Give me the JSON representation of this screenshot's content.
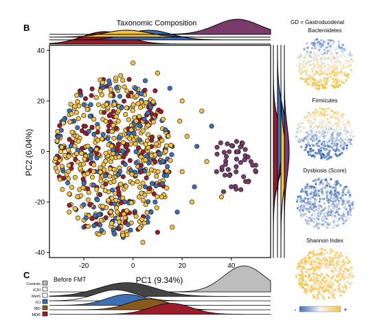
{
  "panel_label_b": "B",
  "panel_label_c": "C",
  "title": "Taxonomic Composition",
  "note": "GD = Gastroduodenal",
  "colorbar_low": "-",
  "colorbar_high": "+",
  "colors": {
    "yellow": "#f5c242",
    "blue": "#3d6fb6",
    "red": "#9b1c2a",
    "purple": "#7a3b6b",
    "grey": "#bdbdbd",
    "dark_grey": "#4a4a4a",
    "brown": "#8a5a1c"
  },
  "chart_data": {
    "type": "scatter",
    "xlabel": "PC1 (9.34%)",
    "ylabel": "PC2 (6.04%)",
    "xlim": [
      -34,
      56
    ],
    "ylim": [
      -42,
      42
    ],
    "xticks": [
      -20,
      0,
      20,
      40
    ],
    "yticks": [
      -40,
      -20,
      0,
      20,
      40
    ],
    "grid": false,
    "series_colors": [
      "#f5c242",
      "#3d6fb6",
      "#9b1c2a",
      "#7a3b6b"
    ],
    "points": [
      [
        -12,
        18,
        0
      ],
      [
        -8,
        22,
        1
      ],
      [
        -5,
        30,
        0
      ],
      [
        0,
        35,
        0
      ],
      [
        5,
        28,
        1
      ],
      [
        10,
        31,
        0
      ],
      [
        15,
        25,
        1
      ],
      [
        20,
        20,
        0
      ],
      [
        -20,
        10,
        2
      ],
      [
        -15,
        5,
        0
      ],
      [
        -10,
        8,
        1
      ],
      [
        -6,
        12,
        0
      ],
      [
        -2,
        6,
        2
      ],
      [
        3,
        10,
        0
      ],
      [
        8,
        14,
        1
      ],
      [
        12,
        9,
        0
      ],
      [
        -25,
        -5,
        2
      ],
      [
        -18,
        -2,
        0
      ],
      [
        -14,
        -8,
        1
      ],
      [
        -9,
        -4,
        0
      ],
      [
        -4,
        -10,
        2
      ],
      [
        2,
        -6,
        0
      ],
      [
        7,
        -3,
        1
      ],
      [
        11,
        -12,
        0
      ],
      [
        -22,
        -18,
        0
      ],
      [
        -16,
        -22,
        1
      ],
      [
        -10,
        -16,
        0
      ],
      [
        -5,
        -25,
        2
      ],
      [
        0,
        -20,
        0
      ],
      [
        6,
        -28,
        1
      ],
      [
        13,
        -18,
        0
      ],
      [
        18,
        -24,
        1
      ],
      [
        -28,
        2,
        0
      ],
      [
        -24,
        12,
        1
      ],
      [
        -19,
        18,
        0
      ],
      [
        -13,
        25,
        2
      ],
      [
        -7,
        28,
        0
      ],
      [
        -1,
        22,
        1
      ],
      [
        4,
        18,
        0
      ],
      [
        9,
        24,
        2
      ],
      [
        22,
        6,
        0
      ],
      [
        26,
        2,
        1
      ],
      [
        30,
        -4,
        0
      ],
      [
        34,
        -8,
        3
      ],
      [
        38,
        -2,
        3
      ],
      [
        42,
        -6,
        3
      ],
      [
        45,
        -10,
        3
      ],
      [
        40,
        -14,
        3
      ],
      [
        44,
        2,
        3
      ],
      [
        36,
        -18,
        0
      ],
      [
        48,
        -4,
        3
      ],
      [
        32,
        10,
        1
      ],
      [
        28,
        16,
        0
      ],
      [
        25,
        -14,
        1
      ],
      [
        20,
        -8,
        0
      ],
      [
        16,
        2,
        2
      ],
      [
        -30,
        -10,
        2
      ],
      [
        -26,
        -24,
        0
      ],
      [
        -20,
        -30,
        1
      ],
      [
        -12,
        -32,
        0
      ],
      [
        -4,
        -34,
        1
      ],
      [
        4,
        -36,
        0
      ],
      [
        10,
        -32,
        2
      ],
      [
        16,
        -30,
        0
      ],
      [
        -8,
        2,
        0
      ],
      [
        -3,
        -1,
        1
      ],
      [
        1,
        3,
        0
      ],
      [
        -17,
        14,
        2
      ],
      [
        -11,
        -12,
        0
      ],
      [
        5,
        -14,
        1
      ],
      [
        -23,
        6,
        0
      ],
      [
        -6,
        18,
        1
      ],
      [
        7,
        5,
        0
      ],
      [
        14,
        -6,
        1
      ],
      [
        19,
        12,
        0
      ],
      [
        -15,
        -26,
        2
      ],
      [
        -1,
        -12,
        0
      ],
      [
        9,
        -20,
        1
      ],
      [
        24,
        -20,
        0
      ],
      [
        50,
        -8,
        3
      ]
    ]
  },
  "top_density": {
    "groups": [
      "#9b1c2a",
      "#3d6fb6",
      "#f5c242",
      "#7a3b6b"
    ]
  },
  "right_density": {
    "groups": [
      "#9b1c2a",
      "#3d6fb6",
      "#f5c242",
      "#7a3b6b"
    ]
  },
  "mini_plots": [
    {
      "label": "Bacteroidetes"
    },
    {
      "label": "Firmicutes"
    },
    {
      "label": "Dysbiosis (Score)"
    },
    {
      "label": "Shannon Index"
    }
  ],
  "panel_c": {
    "title": "Before FMT",
    "ridges": [
      {
        "label": "Controls",
        "color": "#bdbdbd"
      },
      {
        "label": "rCDI",
        "color": "#f0f0f0"
      },
      {
        "label": "MetS",
        "color": "#ffffff"
      },
      {
        "label": "ICI",
        "color": "#3d6fb6"
      },
      {
        "label": "IBD",
        "color": "#8a5a1c"
      },
      {
        "label": "MDR",
        "color": "#9b1c2a"
      }
    ]
  }
}
